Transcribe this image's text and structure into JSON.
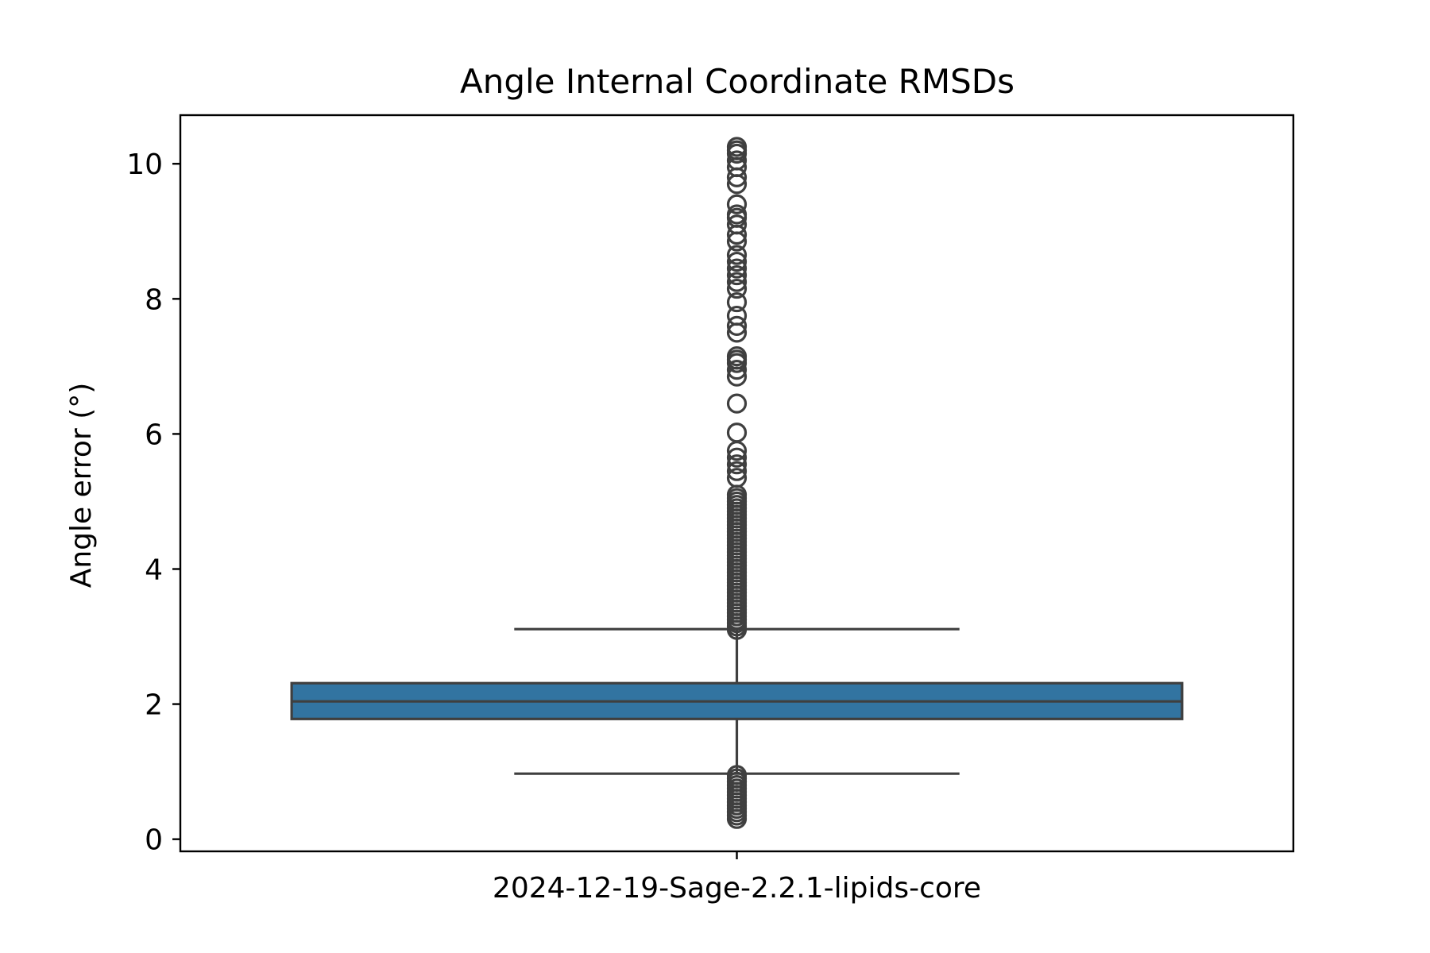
{
  "chart_data": {
    "type": "box",
    "title": "Angle Internal Coordinate RMSDs",
    "ylabel": "Angle error (°)",
    "xlabel": "",
    "categories": [
      "2024-12-19-Sage-2.2.1-lipids-core"
    ],
    "ylim": [
      -0.18,
      10.72
    ],
    "yticks": [
      0,
      2,
      4,
      6,
      8,
      10
    ],
    "grid": false,
    "colors": {
      "box_fill": "#3274a1",
      "line": "#3f3f3f",
      "frame": "#000000"
    },
    "boxes": [
      {
        "name": "2024-12-19-Sage-2.2.1-lipids-core",
        "q1": 1.78,
        "median": 2.04,
        "q3": 2.31,
        "whisker_low": 0.97,
        "whisker_high": 3.11,
        "outliers_high": [
          3.1,
          3.15,
          3.2,
          3.25,
          3.3,
          3.35,
          3.4,
          3.45,
          3.5,
          3.55,
          3.6,
          3.65,
          3.7,
          3.75,
          3.8,
          3.85,
          3.9,
          3.95,
          4.0,
          4.05,
          4.1,
          4.15,
          4.2,
          4.25,
          4.3,
          4.35,
          4.4,
          4.45,
          4.5,
          4.55,
          4.6,
          4.65,
          4.7,
          4.75,
          4.8,
          4.85,
          4.9,
          4.95,
          5.0,
          5.05,
          5.1,
          5.35,
          5.45,
          5.55,
          5.65,
          5.75,
          6.02,
          6.45,
          6.85,
          6.95,
          7.05,
          7.1,
          7.15,
          7.5,
          7.6,
          7.75,
          7.95,
          8.15,
          8.25,
          8.35,
          8.45,
          8.55,
          8.65,
          8.85,
          8.95,
          9.1,
          9.2,
          9.25,
          9.4,
          9.7,
          9.8,
          9.95,
          10.05,
          10.15,
          10.2,
          10.25
        ],
        "outliers_low": [
          0.3,
          0.35,
          0.4,
          0.45,
          0.5,
          0.55,
          0.6,
          0.65,
          0.7,
          0.75,
          0.8,
          0.85,
          0.9,
          0.95
        ]
      }
    ]
  }
}
